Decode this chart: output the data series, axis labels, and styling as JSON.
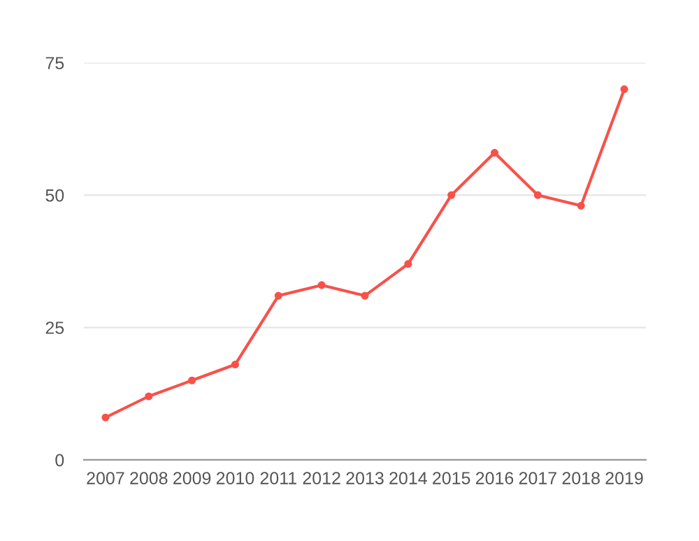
{
  "chart_data": {
    "type": "line",
    "categories": [
      "2007",
      "2008",
      "2009",
      "2010",
      "2011",
      "2012",
      "2013",
      "2014",
      "2015",
      "2016",
      "2017",
      "2018",
      "2019"
    ],
    "series": [
      {
        "color": "#f8514a",
        "values": [
          8,
          12,
          15,
          18,
          31,
          33,
          31,
          37,
          50,
          58,
          50,
          48,
          70
        ]
      }
    ],
    "ylim": [
      0,
      75
    ],
    "yticks": [
      0,
      25,
      50,
      75
    ],
    "grid": "y",
    "marker": "circle",
    "line_style": "solid",
    "legend": false
  }
}
